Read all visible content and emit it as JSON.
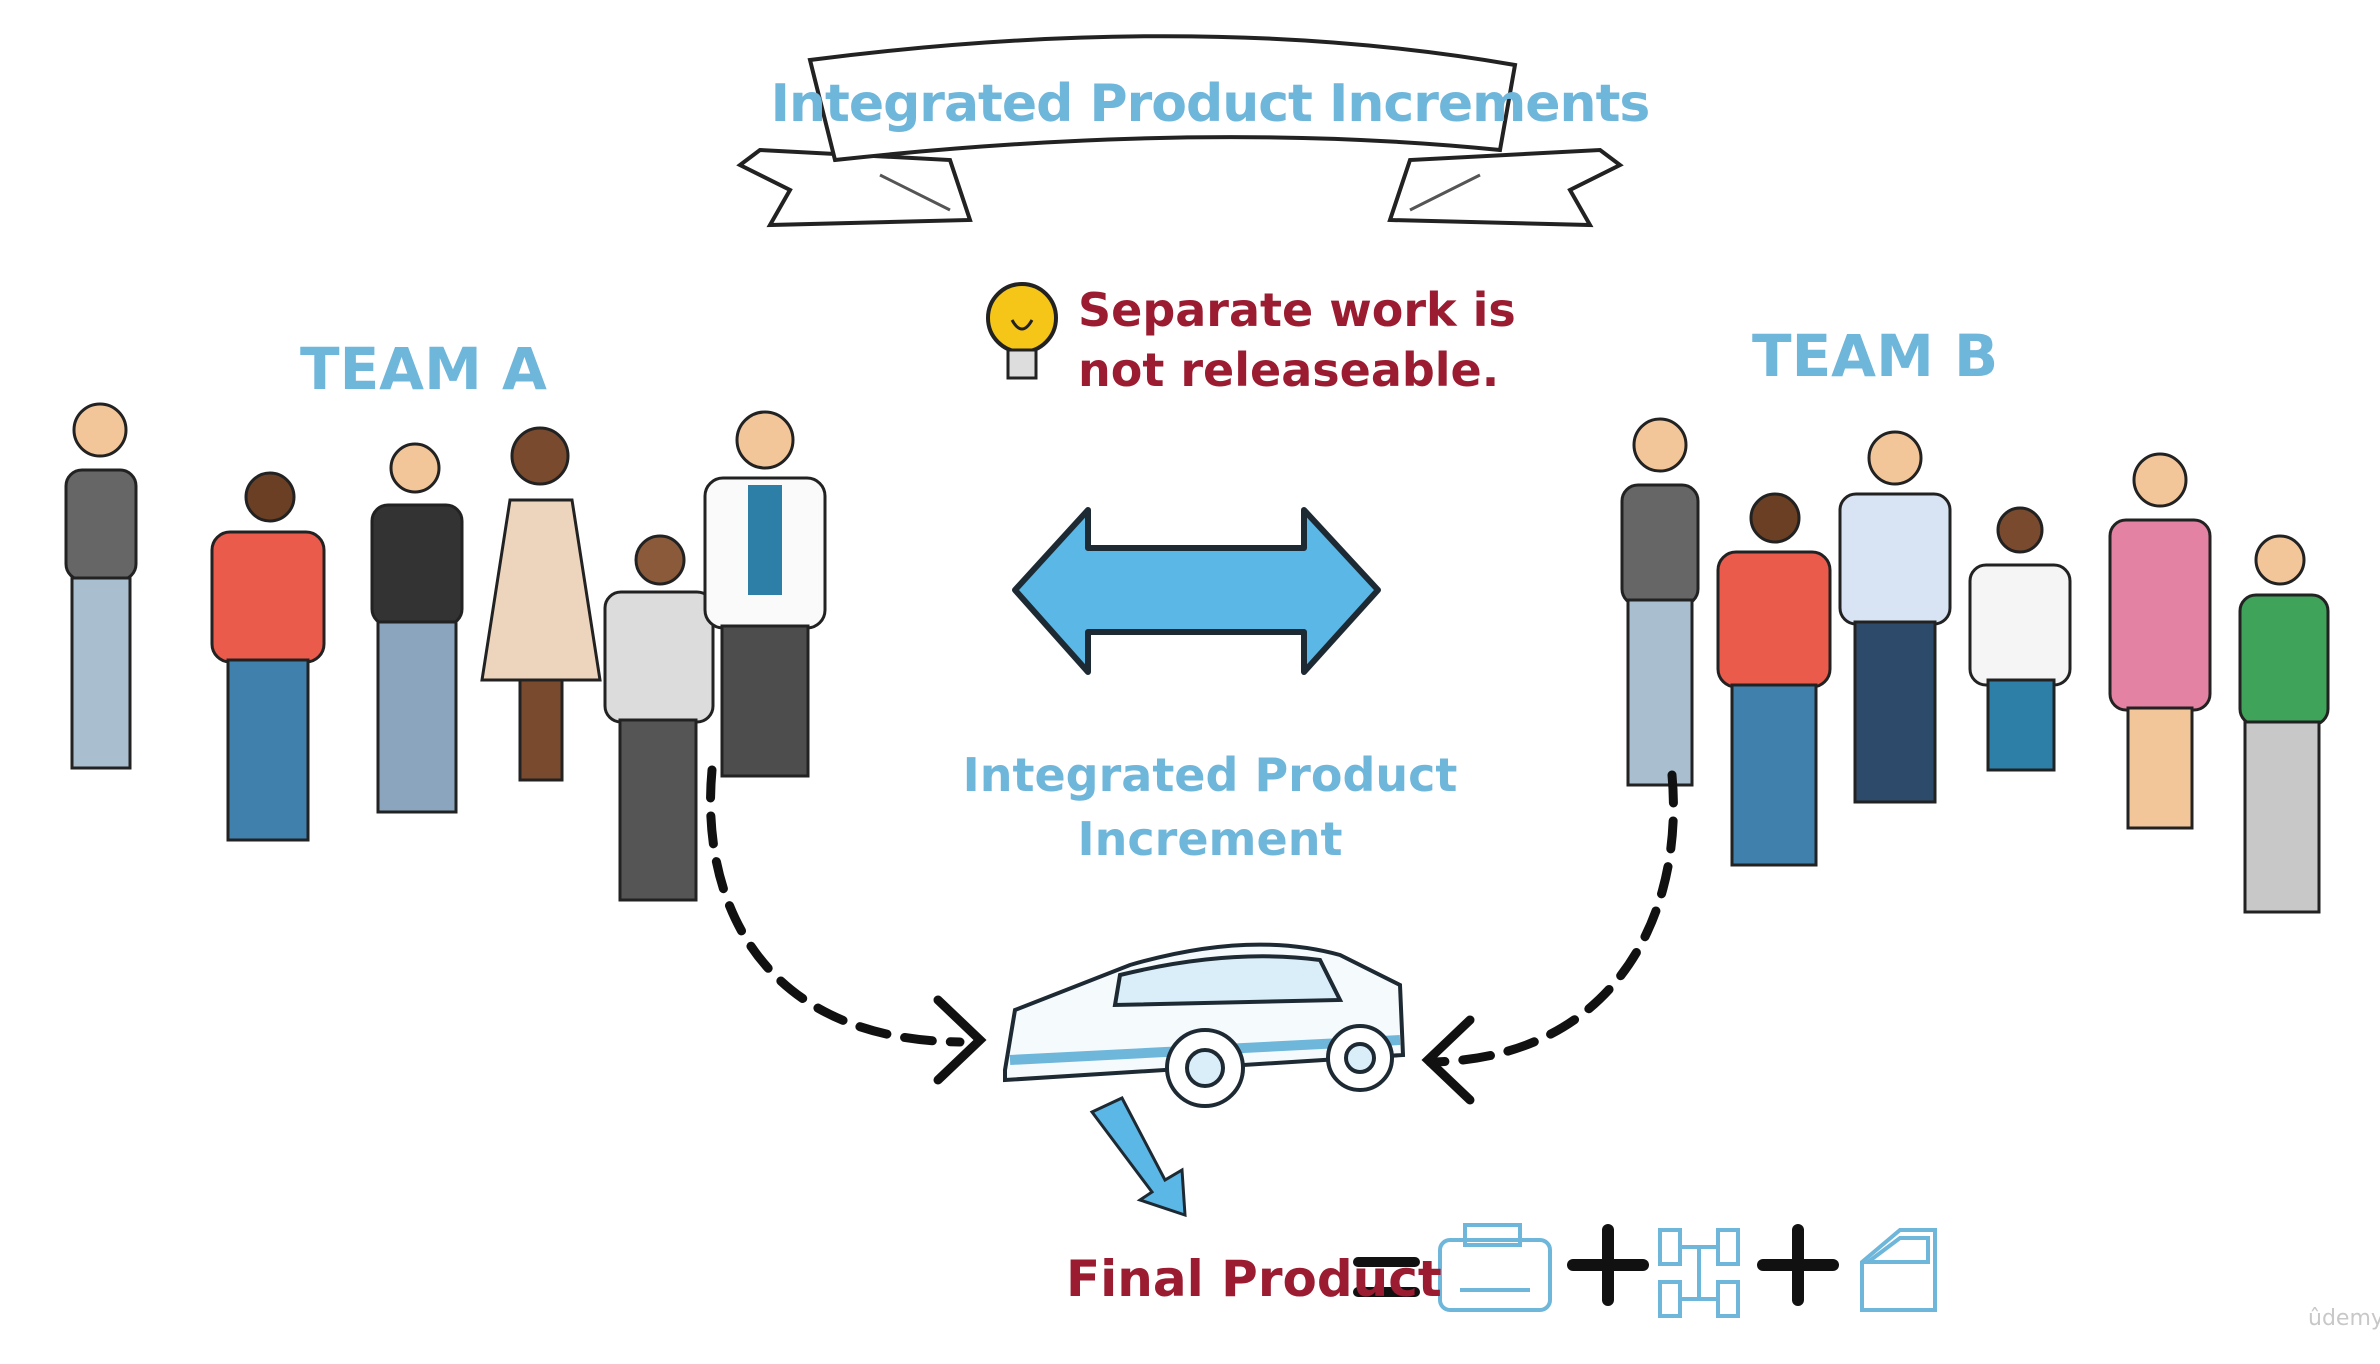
{
  "banner": {
    "title": "Integrated Product Increments"
  },
  "teams": [
    {
      "label": "TEAM A",
      "members": 6
    },
    {
      "label": "TEAM B",
      "members": 6
    }
  ],
  "note": {
    "line1": "Separate work is",
    "line2": "not releaseable.",
    "icon": "lightbulb-icon"
  },
  "increment": {
    "line1": "Integrated Product",
    "line2": "Increment"
  },
  "final": {
    "label": "Final Product",
    "components": [
      "engine-icon",
      "chassis-icon",
      "car-door-icon"
    ]
  },
  "colors": {
    "accent_blue": "#6fb6db",
    "accent_red": "#9b1b30",
    "arrow_blue": "#5bb8e6"
  },
  "watermark": "ûdemy"
}
